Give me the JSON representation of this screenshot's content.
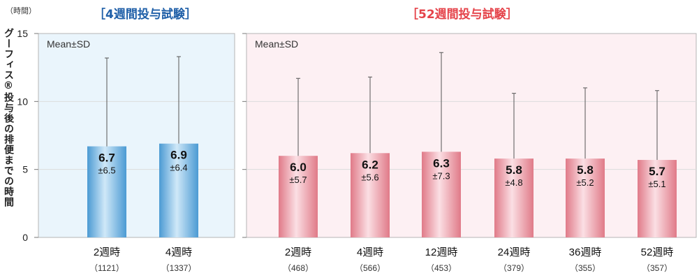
{
  "unit_label": "（時間）",
  "y_axis_label": "グーフィス®投与後の排便までの時間",
  "chart_data": [
    {
      "type": "bar",
      "title": "［4週間投与試験］",
      "legend_text": "Mean±SD",
      "ylim": [
        0,
        15
      ],
      "yticks": [
        0,
        5,
        10,
        15
      ],
      "categories": [
        "2週時",
        "4週時"
      ],
      "n_labels": [
        "（1121）",
        "（1337）"
      ],
      "values": [
        6.7,
        6.9
      ],
      "sd": [
        6.5,
        6.4
      ],
      "value_labels": [
        "6.7",
        "6.9"
      ],
      "sd_labels": [
        "±6.5",
        "±6.4"
      ],
      "bar_color": "#5aa6da",
      "panel_bg": "#eaf5fc"
    },
    {
      "type": "bar",
      "title": "［52週間投与試験］",
      "legend_text": "Mean±SD",
      "ylim": [
        0,
        15
      ],
      "yticks": [
        0,
        5,
        10,
        15
      ],
      "categories": [
        "2週時",
        "4週時",
        "12週時",
        "24週時",
        "36週時",
        "52週時"
      ],
      "n_labels": [
        "（468）",
        "（566）",
        "（453）",
        "（379）",
        "（355）",
        "（357）"
      ],
      "values": [
        6.0,
        6.2,
        6.3,
        5.8,
        5.8,
        5.7
      ],
      "sd": [
        5.7,
        5.6,
        7.3,
        4.8,
        5.2,
        5.1
      ],
      "value_labels": [
        "6.0",
        "6.2",
        "6.3",
        "5.8",
        "5.8",
        "5.7"
      ],
      "sd_labels": [
        "±5.7",
        "±5.6",
        "±7.3",
        "±4.8",
        "±5.2",
        "±5.1"
      ],
      "bar_color": "#e78a95",
      "panel_bg": "#fdf0f3"
    }
  ]
}
